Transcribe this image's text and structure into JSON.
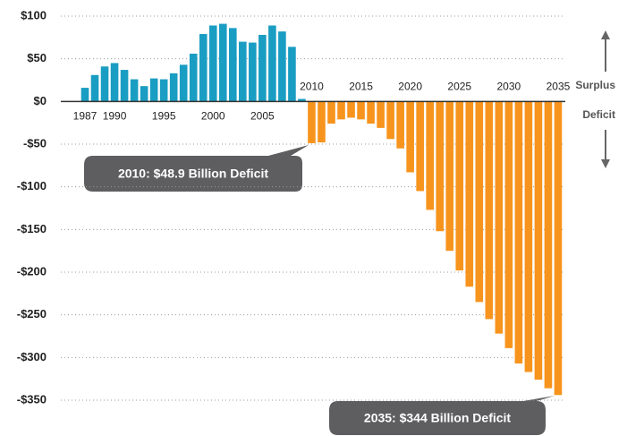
{
  "chart_data": {
    "type": "bar",
    "categories": [
      "1987",
      null,
      null,
      "1990",
      null,
      null,
      null,
      null,
      "1995",
      null,
      null,
      null,
      null,
      "2000",
      null,
      null,
      null,
      null,
      "2005",
      null,
      null,
      null,
      null,
      "2010",
      null,
      null,
      null,
      null,
      "2015",
      null,
      null,
      null,
      null,
      "2020",
      null,
      null,
      null,
      null,
      "2025",
      null,
      null,
      null,
      null,
      "2030",
      null,
      null,
      null,
      null,
      "2035"
    ],
    "series": [
      {
        "name": "Surplus",
        "color": "#1a9dc2",
        "values": [
          16,
          31,
          41,
          45,
          37,
          26,
          18,
          27,
          26,
          33,
          43,
          56,
          79,
          89,
          91,
          86,
          70,
          69,
          78,
          89,
          82,
          64,
          3,
          null,
          null,
          null,
          null,
          null,
          null,
          null,
          null,
          null,
          null,
          null,
          null,
          null,
          null,
          null,
          null,
          null,
          null,
          null,
          null,
          null,
          null,
          null,
          null,
          null,
          null
        ]
      },
      {
        "name": "Deficit",
        "color": "#f7941d",
        "values": [
          null,
          null,
          null,
          null,
          null,
          null,
          null,
          null,
          null,
          null,
          null,
          null,
          null,
          null,
          null,
          null,
          null,
          null,
          null,
          null,
          null,
          null,
          null,
          -48.9,
          -48,
          -26,
          -21,
          -19,
          -21,
          -26,
          -31,
          -44,
          -55,
          -83,
          -105,
          -127,
          -152,
          -175,
          -198,
          -217,
          -235,
          -255,
          -272,
          -289,
          -307,
          -317,
          -326,
          -336,
          -344
        ]
      }
    ],
    "ylim": [
      -350,
      100
    ],
    "yticks": [
      {
        "value": 100,
        "label": "$100"
      },
      {
        "value": 50,
        "label": "$50"
      },
      {
        "value": 0,
        "label": "$0"
      },
      {
        "value": -50,
        "label": "-$50"
      },
      {
        "value": -100,
        "label": "-$100"
      },
      {
        "value": -150,
        "label": "-$150"
      },
      {
        "value": -200,
        "label": "-$200"
      },
      {
        "value": -250,
        "label": "-$250"
      },
      {
        "value": -300,
        "label": "-$300"
      },
      {
        "value": -350,
        "label": "-$350"
      }
    ],
    "grid": true,
    "annotations": [
      "2010: $48.9 Billion Deficit",
      "2035: $344 Billion Deficit"
    ]
  }
}
